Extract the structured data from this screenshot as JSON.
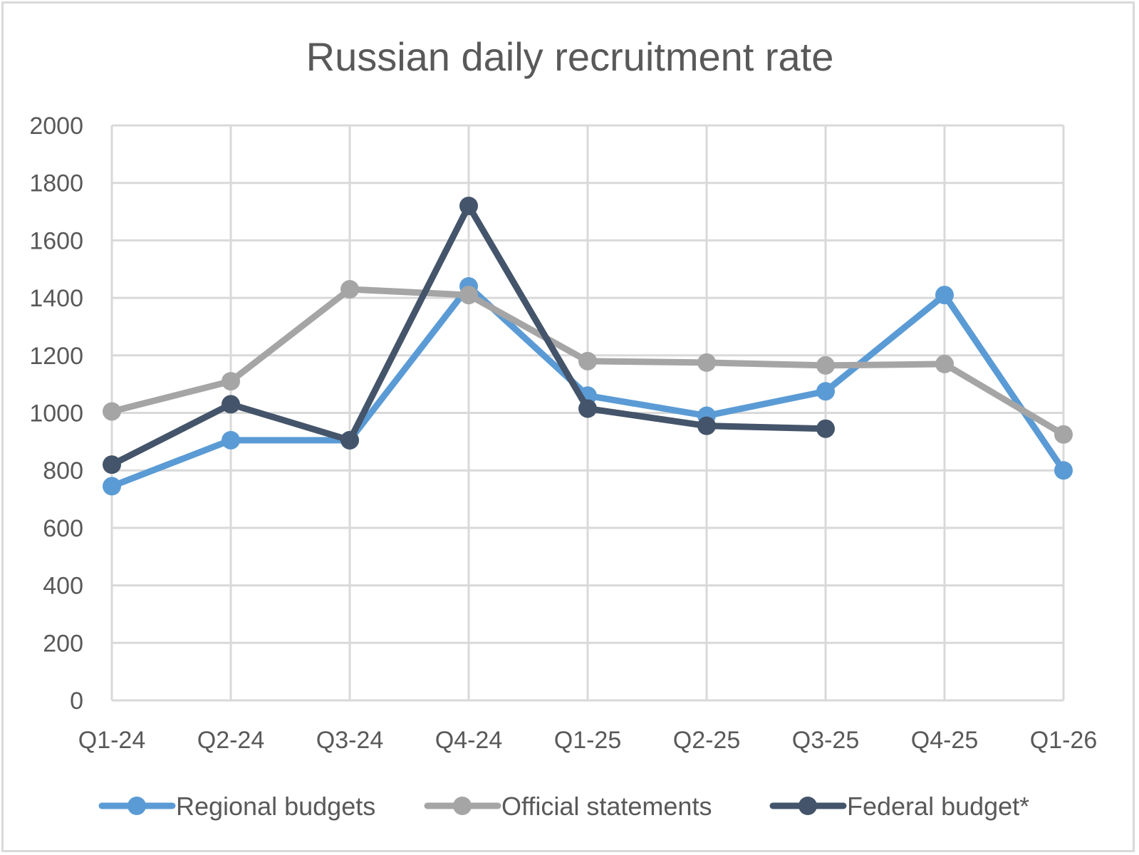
{
  "chart_data": {
    "type": "line",
    "title": "Russian daily recruitment rate",
    "xlabel": "",
    "ylabel": "",
    "categories": [
      "Q1-24",
      "Q2-24",
      "Q3-24",
      "Q4-24",
      "Q1-25",
      "Q2-25",
      "Q3-25",
      "Q4-25",
      "Q1-26"
    ],
    "ylim": [
      0,
      2000
    ],
    "yticks": [
      0,
      200,
      400,
      600,
      800,
      1000,
      1200,
      1400,
      1600,
      1800,
      2000
    ],
    "grid": true,
    "legend": "bottom",
    "series": [
      {
        "name": "Regional budgets",
        "color": "#5b9bd5",
        "values": [
          745,
          905,
          905,
          1440,
          1060,
          990,
          1075,
          1410,
          800
        ]
      },
      {
        "name": "Official statements",
        "color": "#a5a5a5",
        "values": [
          1005,
          1110,
          1430,
          1410,
          1180,
          1175,
          1165,
          1170,
          925
        ]
      },
      {
        "name": "Federal budget*",
        "color": "#44546a",
        "values": [
          820,
          1030,
          905,
          1720,
          1015,
          955,
          945,
          null,
          null
        ]
      }
    ]
  }
}
